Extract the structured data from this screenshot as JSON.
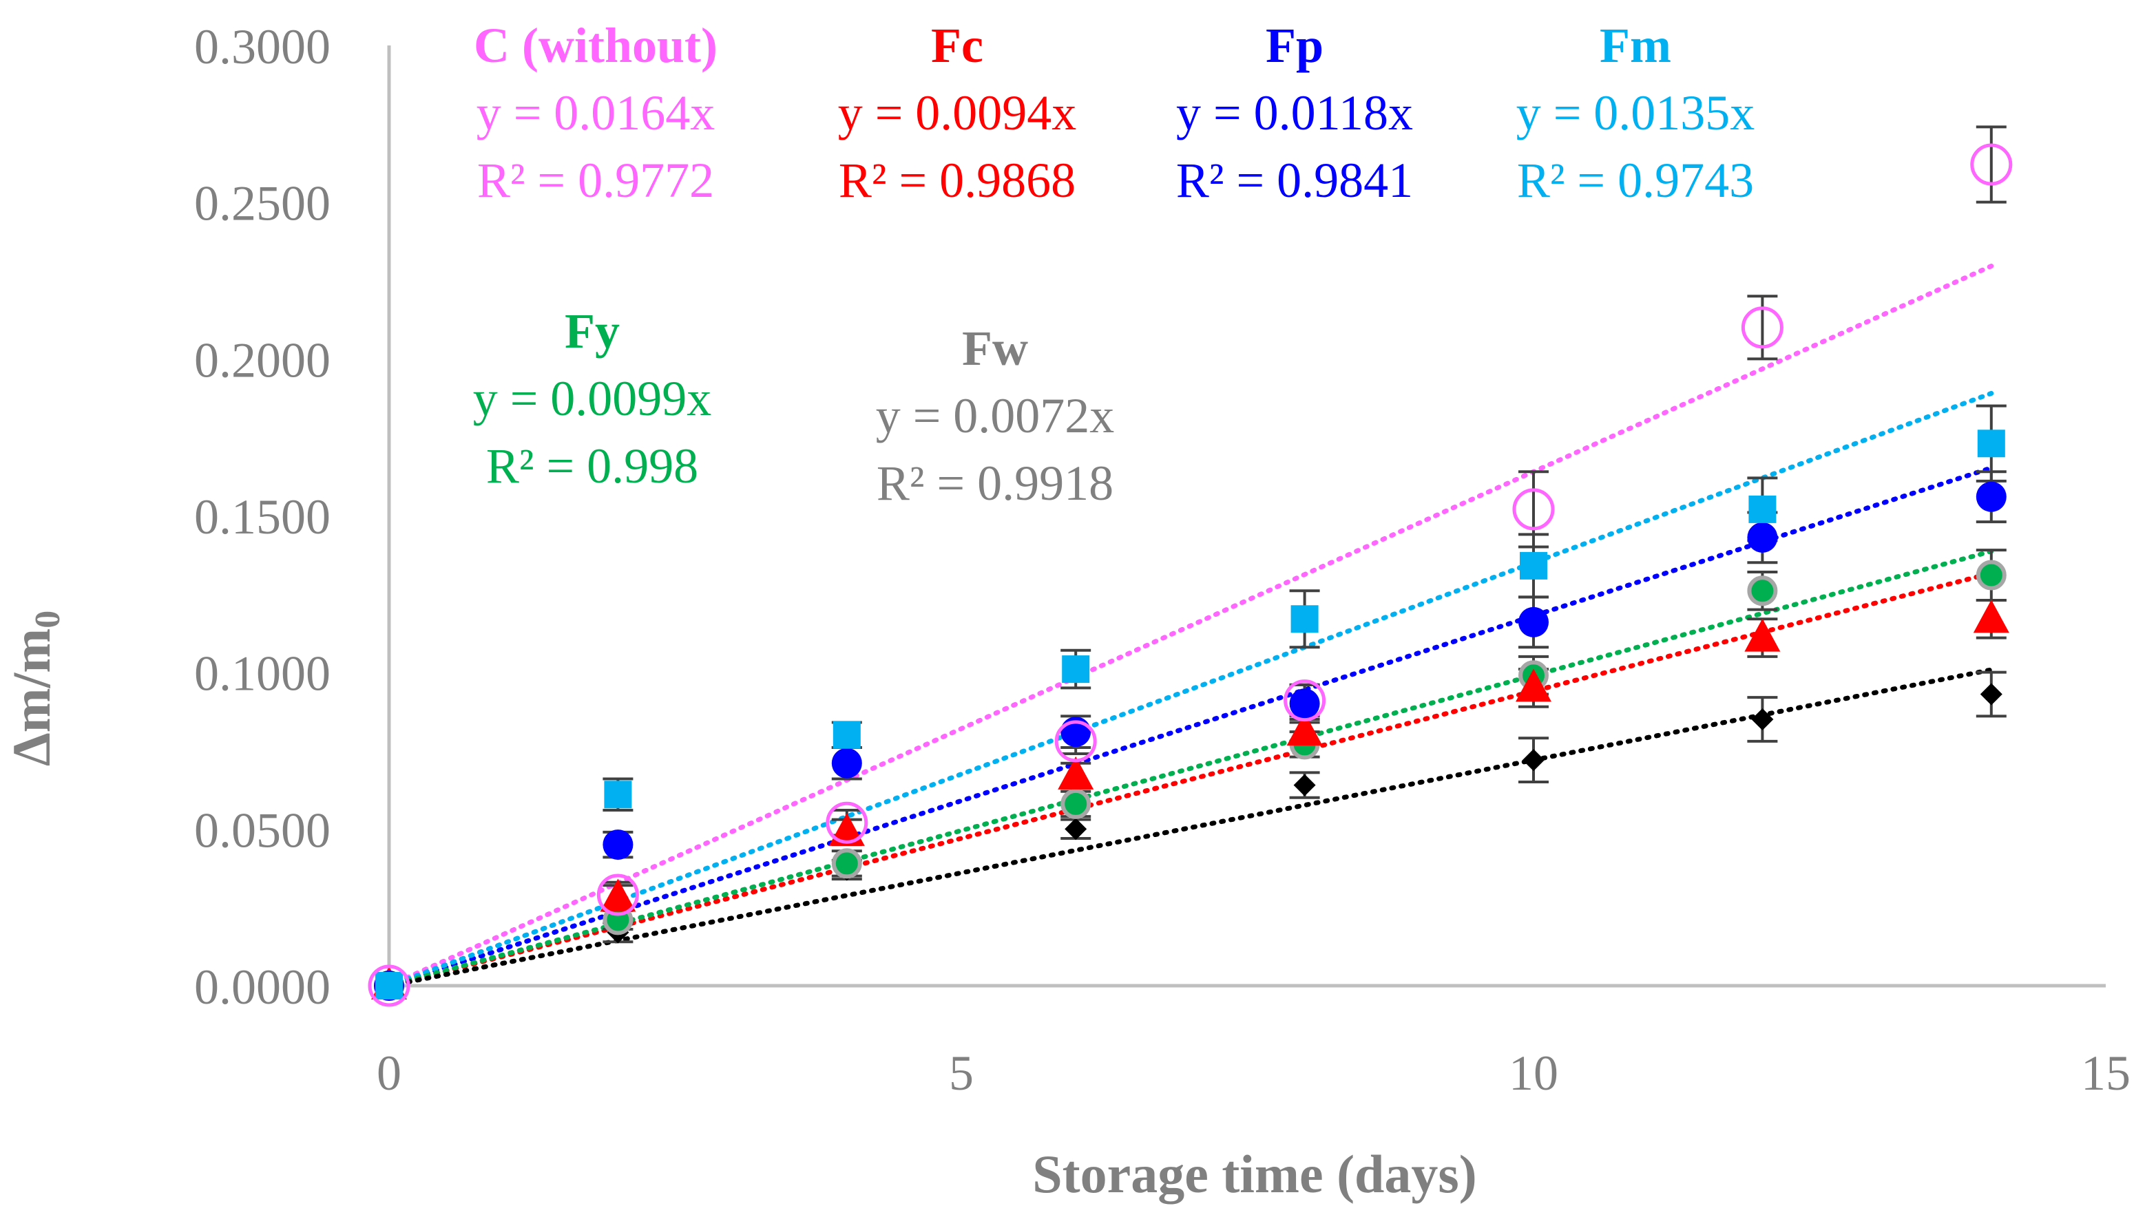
{
  "chart_data": {
    "type": "scatter",
    "xlabel": "Storage time (days)",
    "ylabel_main": "Δm/m",
    "ylabel_sub": "0",
    "xlim": [
      0,
      15
    ],
    "ylim": [
      0,
      0.3
    ],
    "x_ticks": [
      0,
      5,
      10,
      15
    ],
    "x_tick_labels": [
      "0",
      "5",
      "10",
      "15"
    ],
    "y_ticks": [
      0,
      0.05,
      0.1,
      0.15,
      0.2,
      0.25,
      0.3
    ],
    "y_tick_labels": [
      "0.0000",
      "0.0500",
      "0.1000",
      "0.1500",
      "0.2000",
      "0.2500",
      "0.3000"
    ],
    "grid": false,
    "x": [
      0,
      2,
      4,
      6,
      8,
      10,
      12,
      14
    ],
    "series": [
      {
        "name": "C (without)",
        "color": "#ff66ff",
        "marker": "open-circle",
        "values": [
          0,
          0.029,
          0.052,
          0.078,
          0.091,
          0.152,
          0.21,
          0.262
        ],
        "errors": [
          0,
          0.004,
          0.004,
          0.004,
          0.005,
          0.012,
          0.01,
          0.012
        ],
        "slope": 0.0164,
        "trend_x_max": 14,
        "equation": "y = 0.0164x",
        "r2": "R² = 0.9772"
      },
      {
        "name": "Fc",
        "color": "#ff0000",
        "marker": "triangle",
        "values": [
          0,
          0.028,
          0.049,
          0.067,
          0.081,
          0.095,
          0.111,
          0.117
        ],
        "errors": [
          0,
          0.004,
          0.004,
          0.004,
          0.004,
          0.006,
          0.006,
          0.006
        ],
        "slope": 0.0094,
        "trend_x_max": 14,
        "equation": "y = 0.0094x",
        "r2": "R² = 0.9868"
      },
      {
        "name": "Fp",
        "color": "#0000ff",
        "marker": "filled-circle",
        "values": [
          0,
          0.045,
          0.071,
          0.081,
          0.09,
          0.116,
          0.143,
          0.156
        ],
        "errors": [
          0,
          0.004,
          0.005,
          0.005,
          0.006,
          0.008,
          0.008,
          0.008
        ],
        "slope": 0.0118,
        "trend_x_max": 14,
        "equation": "y = 0.0118x",
        "r2": "R² = 0.9841"
      },
      {
        "name": "Fm",
        "color": "#00b0f0",
        "marker": "square",
        "values": [
          0,
          0.061,
          0.08,
          0.101,
          0.117,
          0.134,
          0.152,
          0.173
        ],
        "errors": [
          0,
          0.005,
          0.004,
          0.006,
          0.009,
          0.01,
          0.01,
          0.012
        ],
        "slope": 0.0135,
        "trend_x_max": 14,
        "equation": "y = 0.0135x",
        "r2": "R² = 0.9743"
      },
      {
        "name": "Fy",
        "color": "#00b050",
        "marker": "gray-ring-circle",
        "values": [
          0,
          0.021,
          0.039,
          0.058,
          0.077,
          0.099,
          0.126,
          0.131
        ],
        "errors": [
          0,
          0.003,
          0.004,
          0.004,
          0.004,
          0.006,
          0.006,
          0.008
        ],
        "slope": 0.0099,
        "trend_x_max": 14,
        "equation": "y = 0.0099x",
        "r2": "R² = 0.998"
      },
      {
        "name": "Fw",
        "color": "#808080",
        "marker": "diamond",
        "line_color": "#000000",
        "marker_color": "#000000",
        "values": [
          0,
          0.017,
          0.037,
          0.05,
          0.064,
          0.072,
          0.085,
          0.093
        ],
        "errors": [
          0,
          0.003,
          0.003,
          0.003,
          0.004,
          0.007,
          0.007,
          0.007
        ],
        "slope": 0.0072,
        "trend_x_max": 14,
        "equation": "y = 0.0072x",
        "r2": "R² = 0.9918"
      }
    ]
  }
}
